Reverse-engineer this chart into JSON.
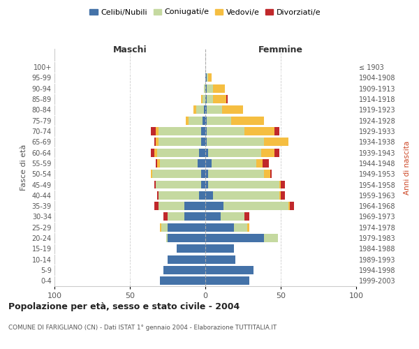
{
  "age_groups": [
    "0-4",
    "5-9",
    "10-14",
    "15-19",
    "20-24",
    "25-29",
    "30-34",
    "35-39",
    "40-44",
    "45-49",
    "50-54",
    "55-59",
    "60-64",
    "65-69",
    "70-74",
    "75-79",
    "80-84",
    "85-89",
    "90-94",
    "95-99",
    "100+"
  ],
  "birth_years": [
    "1999-2003",
    "1994-1998",
    "1989-1993",
    "1984-1988",
    "1979-1983",
    "1974-1978",
    "1969-1973",
    "1964-1968",
    "1959-1963",
    "1954-1958",
    "1949-1953",
    "1944-1948",
    "1939-1943",
    "1934-1938",
    "1929-1933",
    "1924-1928",
    "1919-1923",
    "1914-1918",
    "1909-1913",
    "1904-1908",
    "≤ 1903"
  ],
  "maschi": {
    "celibi": [
      30,
      28,
      25,
      19,
      25,
      25,
      14,
      14,
      4,
      3,
      3,
      5,
      4,
      3,
      3,
      2,
      1,
      0,
      0,
      0,
      0
    ],
    "coniugati": [
      0,
      0,
      0,
      0,
      1,
      4,
      11,
      17,
      27,
      30,
      32,
      25,
      28,
      28,
      28,
      9,
      5,
      2,
      1,
      0,
      0
    ],
    "vedovi": [
      0,
      0,
      0,
      0,
      0,
      1,
      0,
      0,
      0,
      0,
      1,
      2,
      2,
      2,
      2,
      2,
      2,
      1,
      0,
      0,
      0
    ],
    "divorziati": [
      0,
      0,
      0,
      0,
      0,
      0,
      3,
      3,
      1,
      1,
      0,
      1,
      2,
      1,
      3,
      0,
      0,
      0,
      0,
      0,
      0
    ]
  },
  "femmine": {
    "nubili": [
      29,
      32,
      20,
      19,
      39,
      19,
      10,
      12,
      5,
      2,
      2,
      4,
      2,
      1,
      1,
      1,
      1,
      1,
      1,
      1,
      0
    ],
    "coniugate": [
      0,
      0,
      0,
      0,
      9,
      9,
      16,
      43,
      44,
      47,
      37,
      30,
      35,
      38,
      25,
      16,
      10,
      4,
      4,
      1,
      0
    ],
    "vedove": [
      0,
      0,
      0,
      0,
      0,
      1,
      0,
      1,
      1,
      1,
      4,
      4,
      9,
      16,
      20,
      22,
      14,
      9,
      8,
      2,
      0
    ],
    "divorziate": [
      0,
      0,
      0,
      0,
      0,
      0,
      3,
      3,
      3,
      3,
      1,
      4,
      3,
      0,
      3,
      0,
      0,
      1,
      0,
      0,
      0
    ]
  },
  "colors": {
    "celibi": "#4472A8",
    "coniugati": "#C5D9A0",
    "vedovi": "#F5BE41",
    "divorziati": "#C0282B"
  },
  "xlim": 100,
  "title": "Popolazione per età, sesso e stato civile - 2004",
  "subtitle": "COMUNE DI FARIGLIANO (CN) - Dati ISTAT 1° gennaio 2004 - Elaborazione TUTTITALIA.IT",
  "ylabel_left": "Fasce di età",
  "ylabel_right": "Anni di nascita",
  "xlabel_left": "Maschi",
  "xlabel_right": "Femmine",
  "bg_color": "#ffffff",
  "grid_color": "#cccccc",
  "spine_color": "#cccccc"
}
